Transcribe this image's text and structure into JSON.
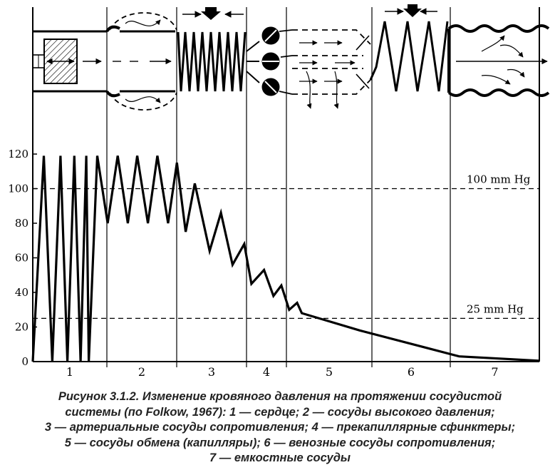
{
  "chart_data": {
    "type": "line",
    "title": "",
    "xlabel": "",
    "ylabel": "",
    "ylim": [
      0,
      120
    ],
    "yticks": [
      0,
      20,
      40,
      60,
      80,
      100,
      120
    ],
    "segments": [
      "1",
      "2",
      "3",
      "4",
      "5",
      "6",
      "7"
    ],
    "reference_lines": [
      {
        "label": "100 mm Hg",
        "value": 100
      },
      {
        "label": "25 mm Hg",
        "value": 25
      }
    ],
    "series": [
      {
        "values": [
          [
            1,
            0
          ],
          [
            1.35,
            119
          ],
          [
            1.62,
            0
          ],
          [
            1.88,
            119
          ],
          [
            2.1,
            0
          ],
          [
            2.32,
            119
          ],
          [
            2.52,
            0
          ],
          [
            2.7,
            119
          ],
          [
            2.78,
            0
          ],
          [
            3.05,
            119
          ],
          [
            3.38,
            80
          ],
          [
            3.7,
            119
          ],
          [
            4.02,
            80
          ],
          [
            4.32,
            119
          ],
          [
            4.66,
            80
          ],
          [
            4.96,
            119
          ],
          [
            5.3,
            80
          ],
          [
            5.58,
            115
          ],
          [
            5.86,
            75
          ],
          [
            6.15,
            103
          ],
          [
            6.62,
            64
          ],
          [
            6.98,
            86
          ],
          [
            7.35,
            56
          ],
          [
            7.72,
            68
          ],
          [
            7.95,
            45
          ],
          [
            8.35,
            53
          ],
          [
            8.65,
            38
          ],
          [
            8.9,
            44
          ],
          [
            9.15,
            30
          ],
          [
            9.4,
            34
          ],
          [
            9.55,
            28
          ],
          [
            11.4,
            18
          ],
          [
            13.5,
            8
          ],
          [
            14.55,
            3
          ],
          [
            17.1,
            0.5
          ]
        ]
      }
    ]
  },
  "caption": {
    "lines": [
      "Рисунок 3.1.2. Изменение кровяного давления на протяжении сосудистой",
      "системы (по Folkow, 1967): 1 — сердце; 2 — сосуды высокого давления;",
      "3 — артериальные сосуды сопротивления; 4 — прекапиллярные сфинктеры;",
      "5 — сосуды обмена (капилляры); 6 — венозные сосуды сопротивления;",
      "7 — емкостные сосуды"
    ]
  }
}
